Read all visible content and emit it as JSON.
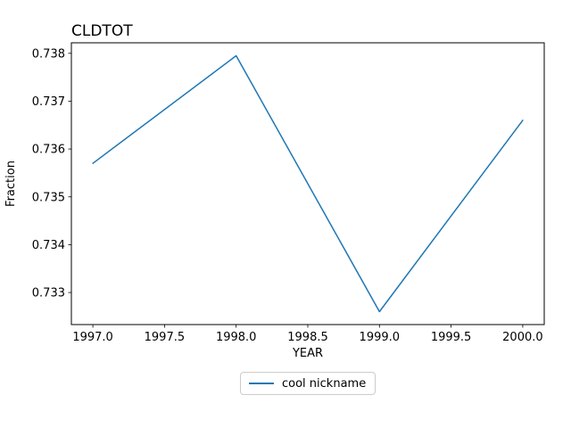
{
  "chart_data": {
    "type": "line",
    "title": "CLDTOT",
    "xlabel": "YEAR",
    "ylabel": "Fraction",
    "x": [
      1997,
      1998,
      1999,
      2000
    ],
    "series": [
      {
        "name": "cool nickname",
        "color": "#1f77b4",
        "values": [
          0.7357,
          0.73795,
          0.7326,
          0.7366
        ]
      }
    ],
    "xlim": [
      1996.85,
      2000.15
    ],
    "ylim": [
      0.73233,
      0.73822
    ],
    "xticks": [
      1997.0,
      1997.5,
      1998.0,
      1998.5,
      1999.0,
      1999.5,
      2000.0
    ],
    "xtick_labels": [
      "1997.0",
      "1997.5",
      "1998.0",
      "1998.5",
      "1999.0",
      "1999.5",
      "2000.0"
    ],
    "yticks": [
      0.733,
      0.734,
      0.735,
      0.736,
      0.737,
      0.738
    ],
    "ytick_labels": [
      "0.733",
      "0.734",
      "0.735",
      "0.736",
      "0.737",
      "0.738"
    ],
    "grid": false,
    "legend_position": "below-center",
    "axis_color": "#000000",
    "text_color": "#000000",
    "background": "#ffffff"
  }
}
